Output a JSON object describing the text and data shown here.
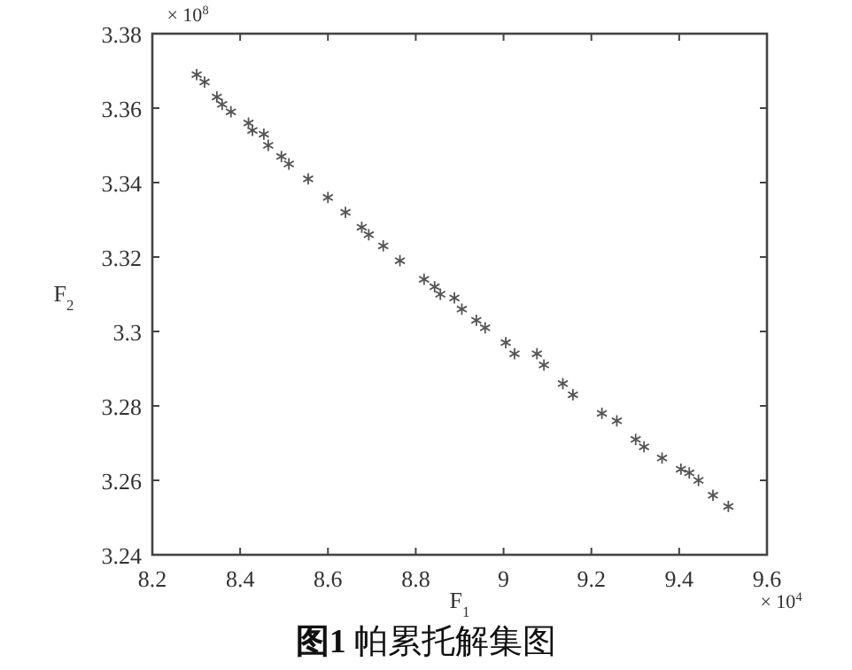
{
  "chart_data": {
    "type": "scatter",
    "title": "**图1**  帕累托解集图",
    "xlabel": "F$_{1}$",
    "ylabel": "F$_{2}$",
    "annotations": [
      "× 10$^{4}$",
      "× 10$^{8}$"
    ],
    "xlim": [
      8.2,
      9.6
    ],
    "xticks": [
      8.2,
      8.4,
      8.6,
      8.8,
      9,
      9.2,
      9.4,
      9.6
    ],
    "ylim": [
      3.24,
      3.38
    ],
    "yticks": [
      3.24,
      3.26,
      3.28,
      3.3,
      3.32,
      3.34,
      3.36,
      3.38
    ],
    "marker": "cross",
    "grid": false,
    "series": [
      {
        "color": "#555555",
        "x": [
          8.301,
          8.319,
          8.347,
          8.359,
          8.379,
          8.419,
          8.428,
          8.454,
          8.464,
          8.494,
          8.511,
          8.555,
          8.6,
          8.64,
          8.677,
          8.693,
          8.726,
          8.764,
          8.819,
          8.843,
          8.856,
          8.888,
          8.905,
          8.938,
          8.958,
          9.005,
          9.025,
          9.076,
          9.092,
          9.135,
          9.158,
          9.224,
          9.258,
          9.301,
          9.32,
          9.361,
          9.404,
          9.423,
          9.444,
          9.477,
          9.512
        ],
        "values": [
          3.369,
          3.367,
          3.363,
          3.361,
          3.359,
          3.356,
          3.354,
          3.353,
          3.35,
          3.347,
          3.345,
          3.341,
          3.336,
          3.332,
          3.328,
          3.326,
          3.323,
          3.319,
          3.314,
          3.312,
          3.31,
          3.309,
          3.306,
          3.303,
          3.301,
          3.297,
          3.294,
          3.294,
          3.291,
          3.286,
          3.283,
          3.278,
          3.276,
          3.271,
          3.269,
          3.266,
          3.263,
          3.262,
          3.26,
          3.256,
          3.253
        ]
      }
    ]
  }
}
